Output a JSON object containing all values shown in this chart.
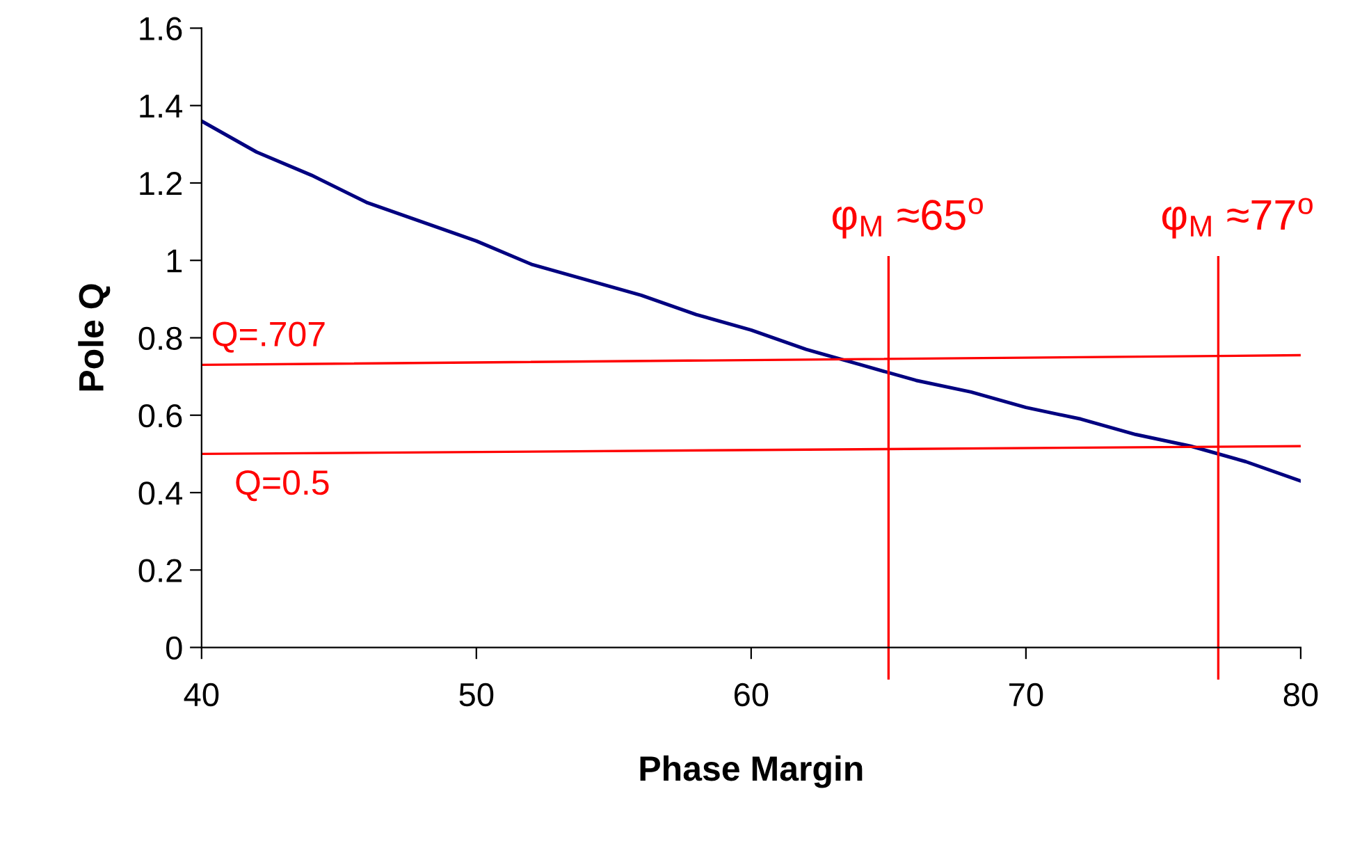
{
  "chart_data": {
    "type": "line",
    "xlabel": "Phase Margin",
    "ylabel": "Pole Q",
    "xlim": [
      40,
      80
    ],
    "xticks": [
      40,
      50,
      60,
      70,
      80
    ],
    "ylim": [
      0,
      1.6
    ],
    "yticks": [
      0,
      0.2,
      0.4,
      0.6,
      0.8,
      1,
      1.2,
      1.4,
      1.6
    ],
    "grid": false,
    "legend": false,
    "marker": "none",
    "line_style": "solid",
    "series": [
      {
        "color": "#000080",
        "x": [
          40,
          42,
          44,
          46,
          48,
          50,
          52,
          54,
          56,
          58,
          60,
          62,
          64,
          66,
          68,
          70,
          72,
          74,
          76,
          78,
          80
        ],
        "values": [
          1.36,
          1.28,
          1.22,
          1.15,
          1.1,
          1.05,
          0.99,
          0.95,
          0.91,
          0.86,
          0.82,
          0.77,
          0.73,
          0.69,
          0.66,
          0.62,
          0.59,
          0.55,
          0.52,
          0.48,
          0.43
        ]
      },
      {
        "color": "#ff0000",
        "x": [
          40,
          80
        ],
        "values": [
          0.73,
          0.755
        ]
      },
      {
        "color": "#ff0000",
        "x": [
          40,
          80
        ],
        "values": [
          0.5,
          0.52
        ]
      }
    ],
    "ref_lines": [
      {
        "axis": "x",
        "value": 65,
        "label": "φ$_{M}$ ≈65$^{o}$",
        "color": "#ff0000"
      },
      {
        "axis": "x",
        "value": 77,
        "label": "φ$_{M}$ ≈77$^{o}$",
        "color": "#ff0000"
      }
    ],
    "annotations": [
      "Q=.707",
      "Q=0.5"
    ]
  }
}
